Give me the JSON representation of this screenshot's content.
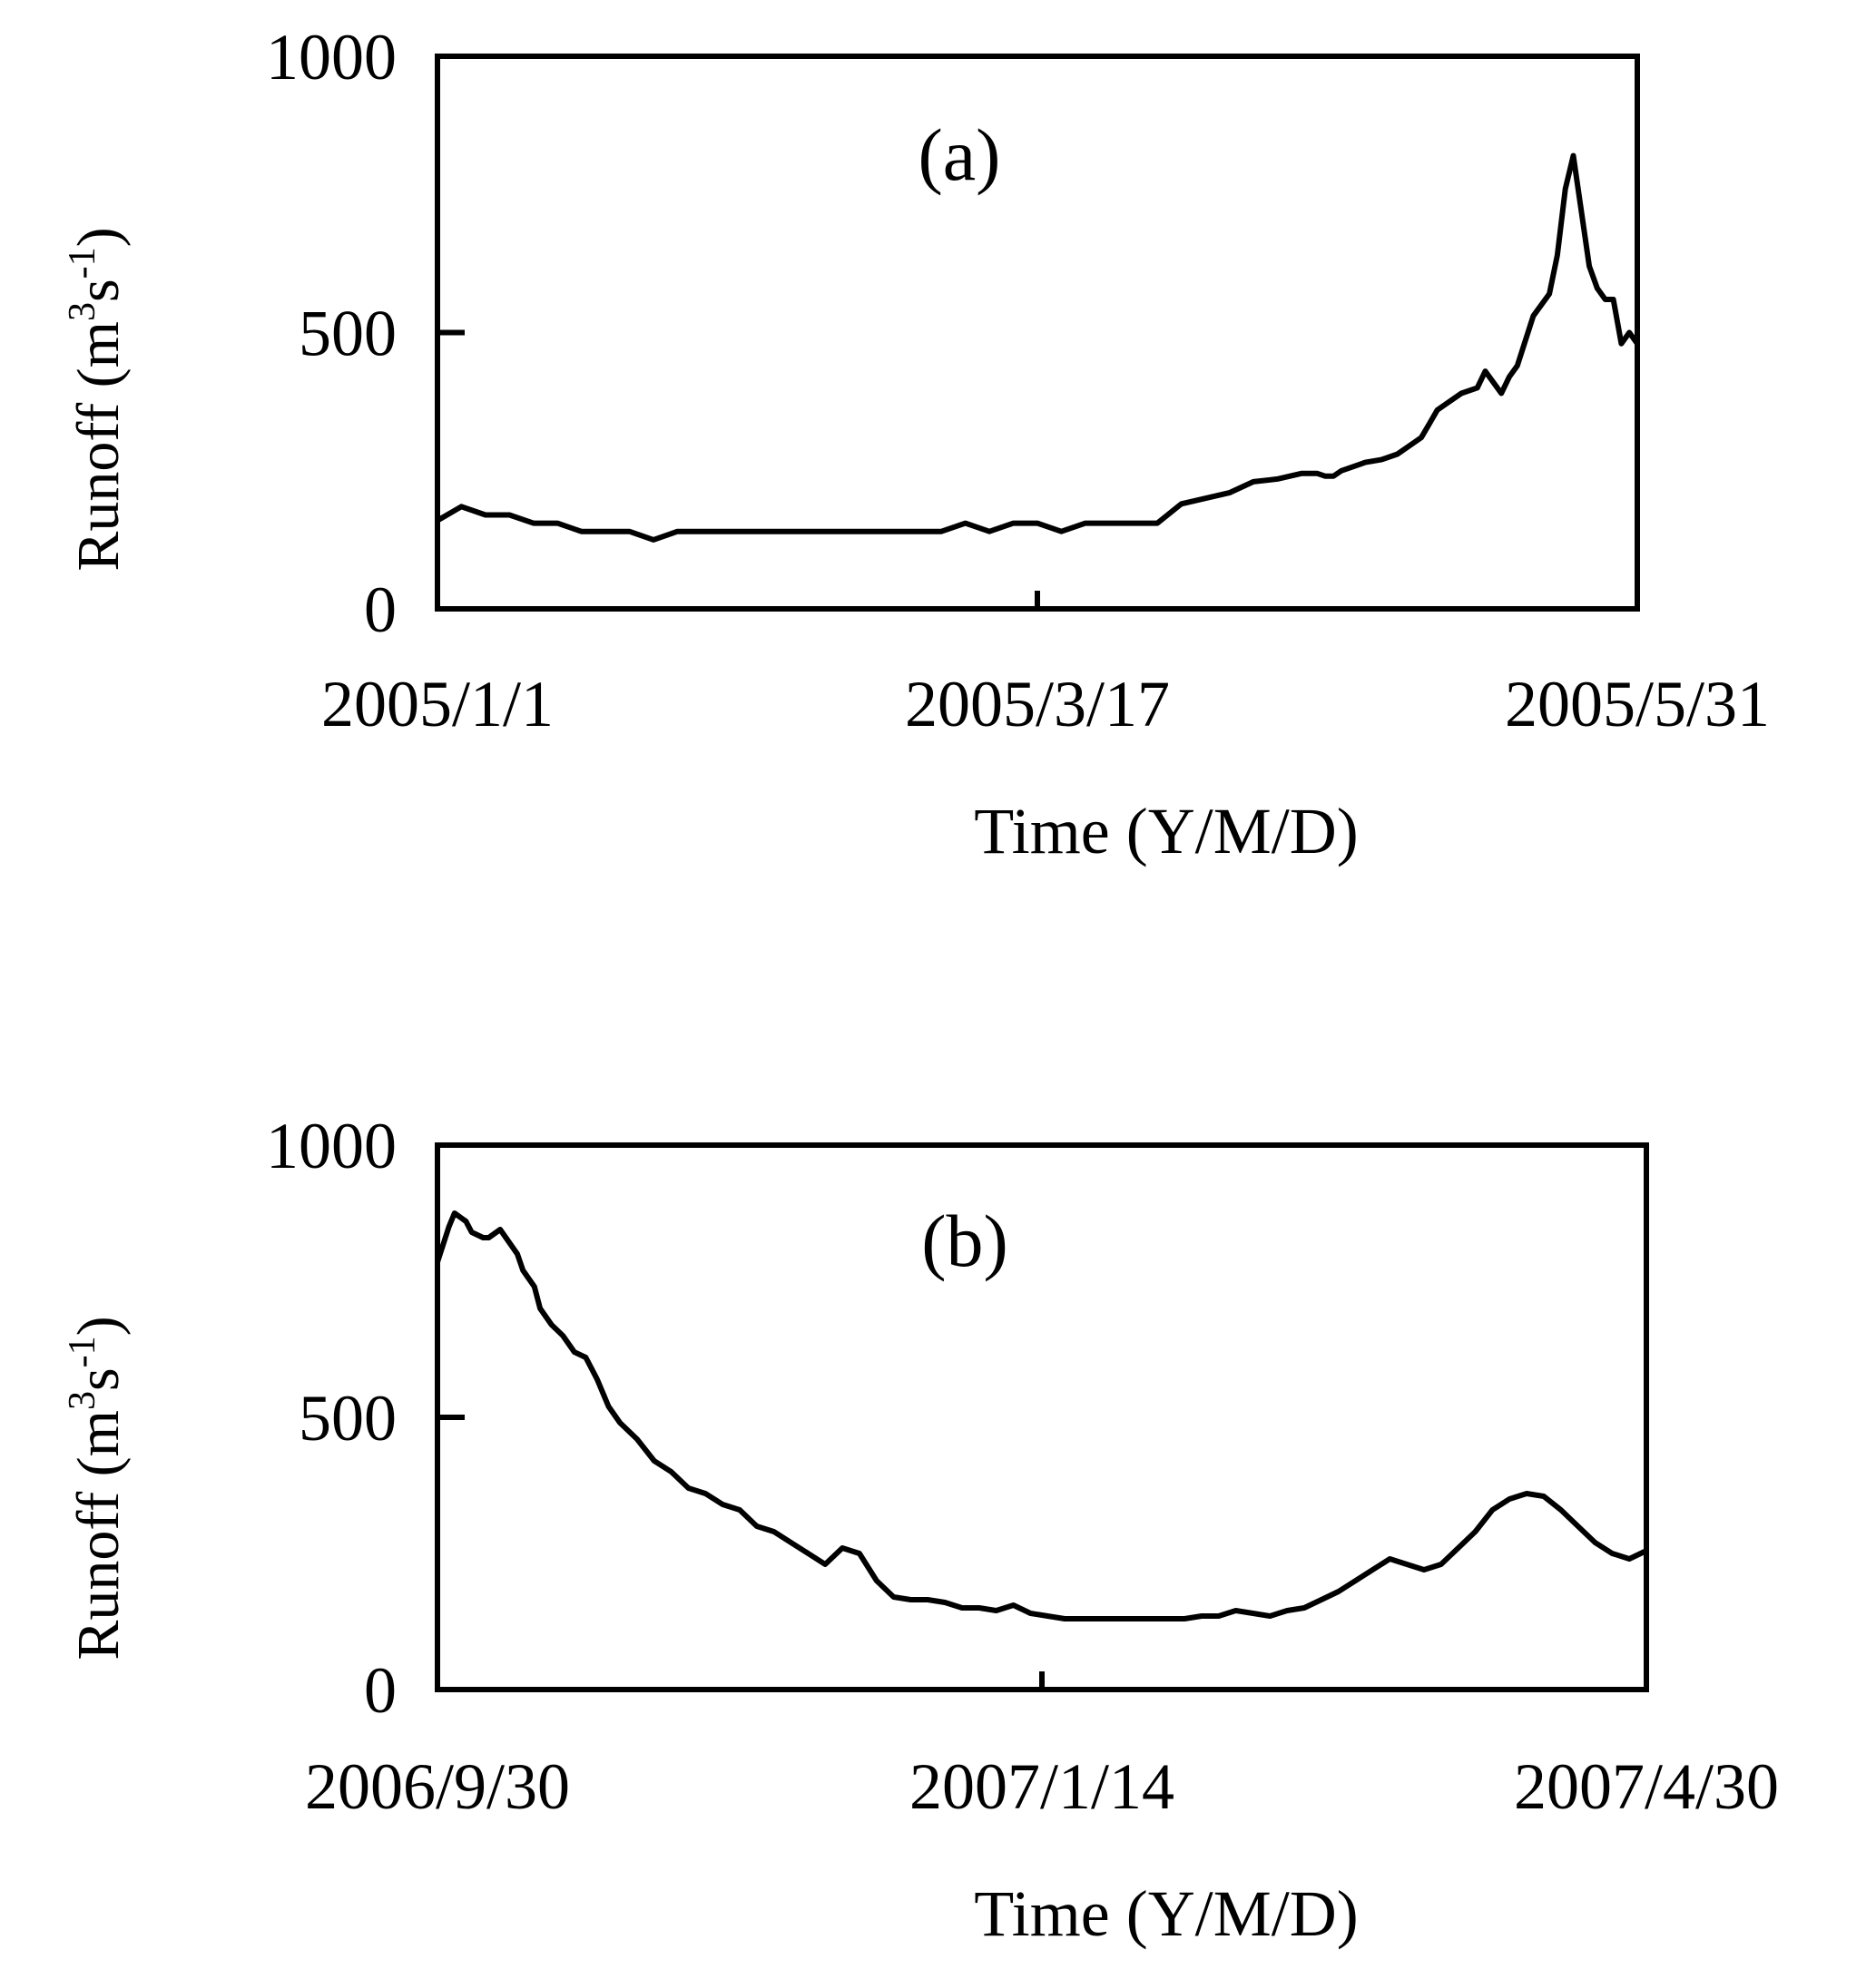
{
  "chart_data": [
    {
      "type": "line",
      "panel_label": "(a)",
      "xlabel": "Time (Y/M/D)",
      "ylabel": {
        "base": "Runoff (m",
        "sup1": "3",
        "mid": "s",
        "sup2": "-1",
        "end": ")"
      },
      "ylim": [
        0,
        1000
      ],
      "yticks": [
        "0",
        "500",
        "1000"
      ],
      "xticks": [
        "2005/1/1",
        "2005/3/17",
        "2005/5/31"
      ],
      "xlim_days": [
        0,
        150
      ],
      "grid": false,
      "x_unit": "days from 2005/1/1",
      "series": [
        {
          "x": [
            0,
            3,
            6,
            9,
            12,
            15,
            18,
            21,
            24,
            27,
            30,
            33,
            36,
            39,
            42,
            45,
            48,
            51,
            54,
            57,
            60,
            63,
            66,
            69,
            72,
            75,
            78,
            81,
            84,
            87,
            90,
            93,
            96,
            99,
            102,
            105,
            108,
            110,
            111,
            112,
            113,
            115,
            116,
            118,
            120,
            122,
            123,
            124,
            125,
            126,
            128,
            130,
            131,
            133,
            134,
            135,
            137,
            139,
            140,
            141,
            142,
            144,
            145,
            146,
            147,
            148,
            149,
            150
          ],
          "values": [
            160,
            185,
            170,
            170,
            155,
            155,
            140,
            140,
            140,
            125,
            140,
            140,
            140,
            140,
            140,
            140,
            140,
            140,
            140,
            140,
            140,
            140,
            155,
            140,
            155,
            155,
            140,
            155,
            155,
            155,
            155,
            190,
            200,
            210,
            230,
            235,
            245,
            245,
            240,
            240,
            250,
            260,
            265,
            270,
            280,
            300,
            310,
            335,
            360,
            370,
            390,
            400,
            430,
            390,
            420,
            440,
            530,
            570,
            640,
            760,
            820,
            620,
            580,
            560,
            560,
            480,
            500,
            480
          ]
        }
      ]
    },
    {
      "type": "line",
      "panel_label": "(b)",
      "xlabel": "Time (Y/M/D)",
      "ylabel": {
        "base": "Runoff (m",
        "sup1": "3",
        "mid": "s",
        "sup2": "-1",
        "end": ")"
      },
      "ylim": [
        0,
        1000
      ],
      "yticks": [
        "0",
        "500",
        "1000"
      ],
      "xticks": [
        "2006/9/30",
        "2007/1/14",
        "2007/4/30"
      ],
      "xlim_days": [
        0,
        212
      ],
      "grid": false,
      "x_unit": "days from 2006/9/30",
      "series": [
        {
          "x": [
            0,
            2,
            3,
            5,
            6,
            8,
            9,
            11,
            12,
            14,
            15,
            17,
            18,
            20,
            22,
            24,
            26,
            28,
            30,
            32,
            35,
            38,
            41,
            44,
            47,
            50,
            53,
            56,
            59,
            62,
            65,
            68,
            71,
            74,
            77,
            80,
            83,
            86,
            89,
            92,
            95,
            98,
            101,
            104,
            107,
            110,
            113,
            116,
            119,
            122,
            125,
            128,
            131,
            134,
            137,
            140,
            143,
            146,
            149,
            152,
            155,
            158,
            161,
            164,
            167,
            170,
            173,
            176,
            179,
            182,
            185,
            188,
            191,
            194,
            197,
            200,
            203,
            206,
            209,
            212
          ],
          "values": [
            785,
            850,
            875,
            860,
            840,
            830,
            830,
            845,
            830,
            800,
            770,
            740,
            700,
            670,
            650,
            620,
            610,
            570,
            520,
            490,
            460,
            420,
            400,
            370,
            360,
            340,
            330,
            300,
            290,
            270,
            250,
            230,
            260,
            250,
            200,
            170,
            165,
            165,
            160,
            150,
            150,
            145,
            155,
            140,
            135,
            130,
            130,
            130,
            130,
            130,
            130,
            130,
            130,
            135,
            135,
            145,
            140,
            135,
            145,
            150,
            165,
            180,
            200,
            220,
            240,
            230,
            220,
            230,
            260,
            290,
            330,
            350,
            360,
            355,
            330,
            300,
            270,
            250,
            240,
            255
          ]
        }
      ]
    }
  ]
}
